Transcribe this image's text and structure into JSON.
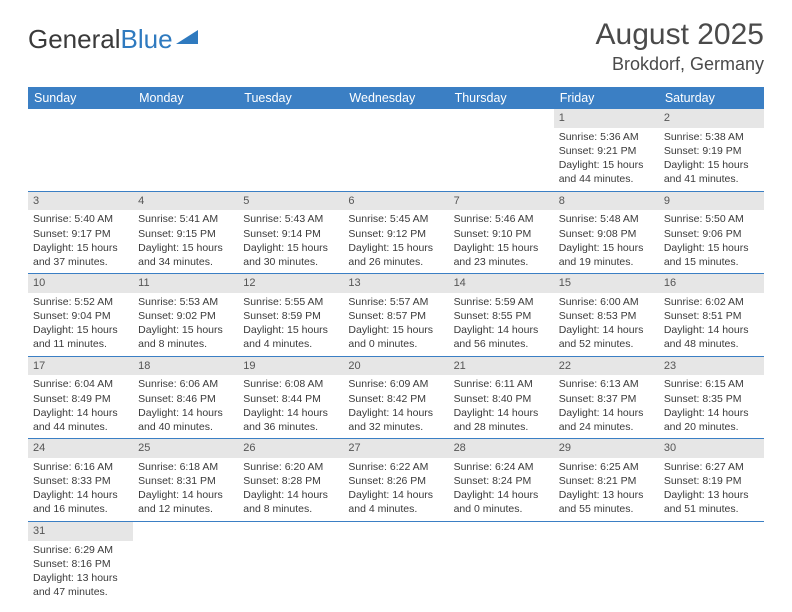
{
  "logo": {
    "part1": "General",
    "part2": "Blue"
  },
  "title": "August 2025",
  "location": "Brokdorf, Germany",
  "colors": {
    "header_bg": "#3b7fc4",
    "daynum_bg": "#e6e6e6",
    "text": "#3a3a3a",
    "divider": "#3b7fc4"
  },
  "day_names": [
    "Sunday",
    "Monday",
    "Tuesday",
    "Wednesday",
    "Thursday",
    "Friday",
    "Saturday"
  ],
  "weeks": [
    [
      null,
      null,
      null,
      null,
      null,
      {
        "d": "1",
        "sr": "Sunrise: 5:36 AM",
        "ss": "Sunset: 9:21 PM",
        "dl1": "Daylight: 15 hours",
        "dl2": "and 44 minutes."
      },
      {
        "d": "2",
        "sr": "Sunrise: 5:38 AM",
        "ss": "Sunset: 9:19 PM",
        "dl1": "Daylight: 15 hours",
        "dl2": "and 41 minutes."
      }
    ],
    [
      {
        "d": "3",
        "sr": "Sunrise: 5:40 AM",
        "ss": "Sunset: 9:17 PM",
        "dl1": "Daylight: 15 hours",
        "dl2": "and 37 minutes."
      },
      {
        "d": "4",
        "sr": "Sunrise: 5:41 AM",
        "ss": "Sunset: 9:15 PM",
        "dl1": "Daylight: 15 hours",
        "dl2": "and 34 minutes."
      },
      {
        "d": "5",
        "sr": "Sunrise: 5:43 AM",
        "ss": "Sunset: 9:14 PM",
        "dl1": "Daylight: 15 hours",
        "dl2": "and 30 minutes."
      },
      {
        "d": "6",
        "sr": "Sunrise: 5:45 AM",
        "ss": "Sunset: 9:12 PM",
        "dl1": "Daylight: 15 hours",
        "dl2": "and 26 minutes."
      },
      {
        "d": "7",
        "sr": "Sunrise: 5:46 AM",
        "ss": "Sunset: 9:10 PM",
        "dl1": "Daylight: 15 hours",
        "dl2": "and 23 minutes."
      },
      {
        "d": "8",
        "sr": "Sunrise: 5:48 AM",
        "ss": "Sunset: 9:08 PM",
        "dl1": "Daylight: 15 hours",
        "dl2": "and 19 minutes."
      },
      {
        "d": "9",
        "sr": "Sunrise: 5:50 AM",
        "ss": "Sunset: 9:06 PM",
        "dl1": "Daylight: 15 hours",
        "dl2": "and 15 minutes."
      }
    ],
    [
      {
        "d": "10",
        "sr": "Sunrise: 5:52 AM",
        "ss": "Sunset: 9:04 PM",
        "dl1": "Daylight: 15 hours",
        "dl2": "and 11 minutes."
      },
      {
        "d": "11",
        "sr": "Sunrise: 5:53 AM",
        "ss": "Sunset: 9:02 PM",
        "dl1": "Daylight: 15 hours",
        "dl2": "and 8 minutes."
      },
      {
        "d": "12",
        "sr": "Sunrise: 5:55 AM",
        "ss": "Sunset: 8:59 PM",
        "dl1": "Daylight: 15 hours",
        "dl2": "and 4 minutes."
      },
      {
        "d": "13",
        "sr": "Sunrise: 5:57 AM",
        "ss": "Sunset: 8:57 PM",
        "dl1": "Daylight: 15 hours",
        "dl2": "and 0 minutes."
      },
      {
        "d": "14",
        "sr": "Sunrise: 5:59 AM",
        "ss": "Sunset: 8:55 PM",
        "dl1": "Daylight: 14 hours",
        "dl2": "and 56 minutes."
      },
      {
        "d": "15",
        "sr": "Sunrise: 6:00 AM",
        "ss": "Sunset: 8:53 PM",
        "dl1": "Daylight: 14 hours",
        "dl2": "and 52 minutes."
      },
      {
        "d": "16",
        "sr": "Sunrise: 6:02 AM",
        "ss": "Sunset: 8:51 PM",
        "dl1": "Daylight: 14 hours",
        "dl2": "and 48 minutes."
      }
    ],
    [
      {
        "d": "17",
        "sr": "Sunrise: 6:04 AM",
        "ss": "Sunset: 8:49 PM",
        "dl1": "Daylight: 14 hours",
        "dl2": "and 44 minutes."
      },
      {
        "d": "18",
        "sr": "Sunrise: 6:06 AM",
        "ss": "Sunset: 8:46 PM",
        "dl1": "Daylight: 14 hours",
        "dl2": "and 40 minutes."
      },
      {
        "d": "19",
        "sr": "Sunrise: 6:08 AM",
        "ss": "Sunset: 8:44 PM",
        "dl1": "Daylight: 14 hours",
        "dl2": "and 36 minutes."
      },
      {
        "d": "20",
        "sr": "Sunrise: 6:09 AM",
        "ss": "Sunset: 8:42 PM",
        "dl1": "Daylight: 14 hours",
        "dl2": "and 32 minutes."
      },
      {
        "d": "21",
        "sr": "Sunrise: 6:11 AM",
        "ss": "Sunset: 8:40 PM",
        "dl1": "Daylight: 14 hours",
        "dl2": "and 28 minutes."
      },
      {
        "d": "22",
        "sr": "Sunrise: 6:13 AM",
        "ss": "Sunset: 8:37 PM",
        "dl1": "Daylight: 14 hours",
        "dl2": "and 24 minutes."
      },
      {
        "d": "23",
        "sr": "Sunrise: 6:15 AM",
        "ss": "Sunset: 8:35 PM",
        "dl1": "Daylight: 14 hours",
        "dl2": "and 20 minutes."
      }
    ],
    [
      {
        "d": "24",
        "sr": "Sunrise: 6:16 AM",
        "ss": "Sunset: 8:33 PM",
        "dl1": "Daylight: 14 hours",
        "dl2": "and 16 minutes."
      },
      {
        "d": "25",
        "sr": "Sunrise: 6:18 AM",
        "ss": "Sunset: 8:31 PM",
        "dl1": "Daylight: 14 hours",
        "dl2": "and 12 minutes."
      },
      {
        "d": "26",
        "sr": "Sunrise: 6:20 AM",
        "ss": "Sunset: 8:28 PM",
        "dl1": "Daylight: 14 hours",
        "dl2": "and 8 minutes."
      },
      {
        "d": "27",
        "sr": "Sunrise: 6:22 AM",
        "ss": "Sunset: 8:26 PM",
        "dl1": "Daylight: 14 hours",
        "dl2": "and 4 minutes."
      },
      {
        "d": "28",
        "sr": "Sunrise: 6:24 AM",
        "ss": "Sunset: 8:24 PM",
        "dl1": "Daylight: 14 hours",
        "dl2": "and 0 minutes."
      },
      {
        "d": "29",
        "sr": "Sunrise: 6:25 AM",
        "ss": "Sunset: 8:21 PM",
        "dl1": "Daylight: 13 hours",
        "dl2": "and 55 minutes."
      },
      {
        "d": "30",
        "sr": "Sunrise: 6:27 AM",
        "ss": "Sunset: 8:19 PM",
        "dl1": "Daylight: 13 hours",
        "dl2": "and 51 minutes."
      }
    ],
    [
      {
        "d": "31",
        "sr": "Sunrise: 6:29 AM",
        "ss": "Sunset: 8:16 PM",
        "dl1": "Daylight: 13 hours",
        "dl2": "and 47 minutes."
      },
      null,
      null,
      null,
      null,
      null,
      null
    ]
  ]
}
